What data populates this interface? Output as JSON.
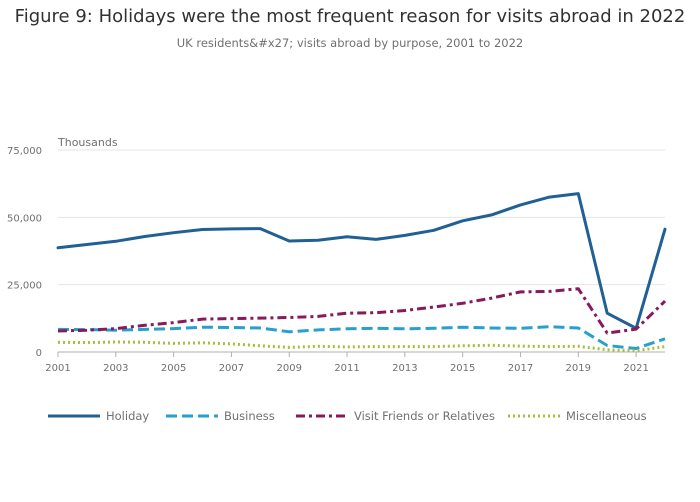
{
  "chart_data": {
    "type": "line",
    "title": "Figure 9: Holidays were the most frequent reason for visits abroad in 2022",
    "subtitle": "UK residents&#x27; visits abroad by purpose, 2001 to 2022",
    "ylabel": "Thousands",
    "xlabel": "",
    "ylim": [
      0,
      75000
    ],
    "yticks": [
      0,
      25000,
      50000,
      75000
    ],
    "ytick_labels": [
      "0",
      "25,000",
      "50,000",
      "75,000"
    ],
    "xlim": [
      2001,
      2022
    ],
    "xticks": [
      2001,
      2003,
      2005,
      2007,
      2009,
      2011,
      2013,
      2015,
      2017,
      2019,
      2021
    ],
    "x": [
      2001,
      2002,
      2003,
      2004,
      2005,
      2006,
      2007,
      2008,
      2009,
      2010,
      2011,
      2012,
      2013,
      2014,
      2015,
      2016,
      2017,
      2018,
      2019,
      2020,
      2021,
      2022
    ],
    "grid": true,
    "legend_position": "bottom",
    "series": [
      {
        "name": "Holiday",
        "color": "#206095",
        "dash": "solid",
        "values": [
          38700,
          39900,
          41100,
          42900,
          44300,
          45500,
          45700,
          45800,
          41200,
          41500,
          42800,
          41800,
          43300,
          45200,
          48700,
          50900,
          54600,
          57500,
          58800,
          14400,
          8800,
          45600
        ]
      },
      {
        "name": "Business",
        "color": "#27a0cc",
        "dash": "dash",
        "values": [
          8400,
          8300,
          8100,
          8400,
          8700,
          9200,
          9100,
          8900,
          7500,
          8200,
          8600,
          8800,
          8600,
          8800,
          9200,
          8900,
          8800,
          9400,
          8900,
          2400,
          1300,
          4900
        ]
      },
      {
        "name": "Visit Friends or Relatives",
        "color": "#871a5b",
        "dash": "dashdot",
        "values": [
          7800,
          8100,
          8700,
          9900,
          10900,
          12200,
          12400,
          12600,
          12800,
          13200,
          14400,
          14600,
          15400,
          16700,
          18100,
          20000,
          22300,
          22500,
          23500,
          7000,
          8500,
          18900
        ]
      },
      {
        "name": "Miscellaneous",
        "color": "#a8bd3a",
        "dash": "dot",
        "values": [
          3600,
          3500,
          3700,
          3600,
          3200,
          3400,
          3000,
          2300,
          1700,
          2100,
          1900,
          2000,
          2000,
          2000,
          2300,
          2500,
          2200,
          2000,
          2100,
          800,
          500,
          2000
        ]
      }
    ]
  }
}
